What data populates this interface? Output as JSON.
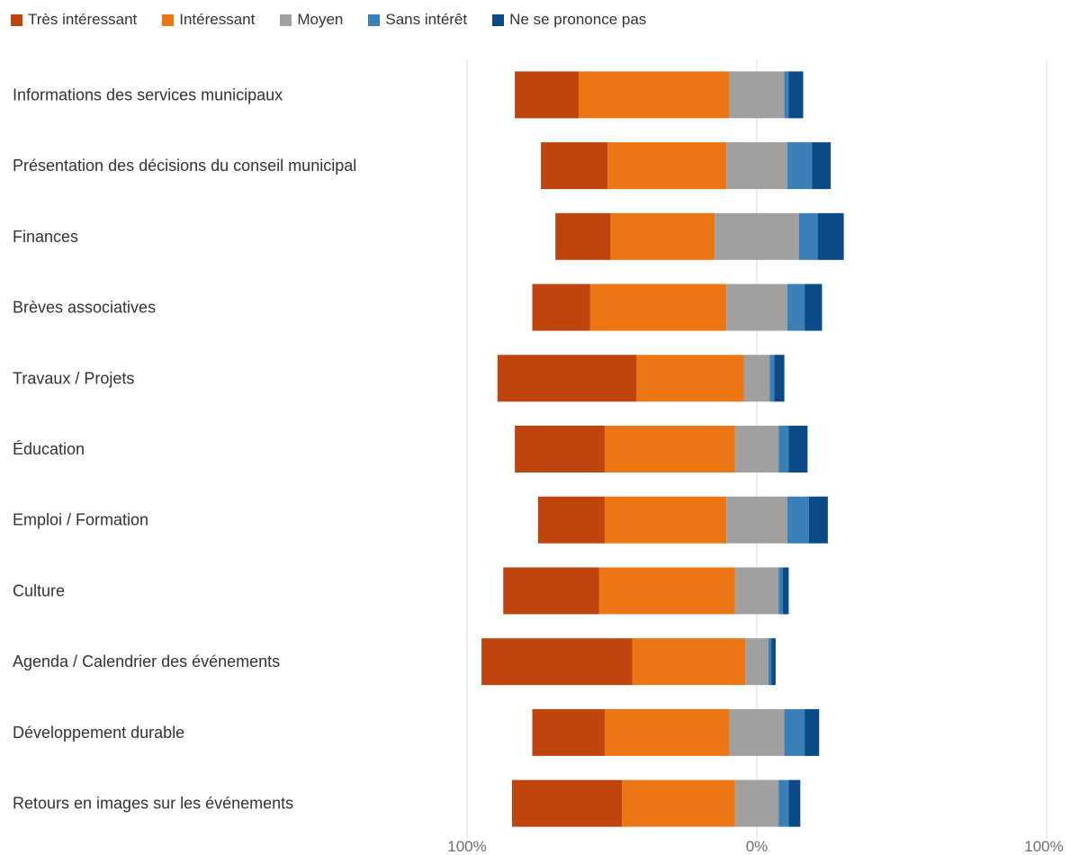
{
  "chart_data": {
    "type": "bar",
    "orientation": "horizontal",
    "stacked": "diverging",
    "legend_position": "top-left",
    "grid": true,
    "categories": [
      "Informations des services municipaux",
      "Présentation des décisions du conseil municipal",
      "Finances",
      "Brèves associatives",
      "Travaux / Projets",
      "Éducation",
      "Emploi / Formation",
      "Culture",
      "Agenda / Calendrier des événements",
      "Développement durable",
      "Retours en images sur les événements"
    ],
    "series": [
      {
        "name": "Très intéressant",
        "color": "#c0440e",
        "side": "negative",
        "values": [
          22,
          23,
          19,
          20,
          48,
          31,
          23,
          33,
          52,
          25,
          38
        ]
      },
      {
        "name": "Intéressant",
        "color": "#ec7614",
        "side": "negative",
        "values": [
          52,
          41,
          36,
          47,
          37,
          45,
          42,
          47,
          39,
          43,
          39
        ]
      },
      {
        "name": "Moyen",
        "color": "#a0a0a0",
        "side": "neutral",
        "values": [
          19,
          21,
          29,
          21,
          9,
          15,
          21,
          15,
          8,
          19,
          15
        ]
      },
      {
        "name": "Sans intérêt",
        "color": "#3a7fb8",
        "side": "positive",
        "values": [
          1.5,
          8.5,
          6.5,
          6,
          1.5,
          3.5,
          7.5,
          1.5,
          1,
          7,
          3.5
        ]
      },
      {
        "name": "Ne se prononce pas",
        "color": "#0a4a86",
        "side": "positive",
        "values": [
          5,
          6.5,
          9,
          6,
          3.5,
          6.5,
          6.5,
          2,
          1.5,
          5,
          4
        ]
      }
    ],
    "x_ticks": [
      "100%",
      "0%",
      "100%"
    ],
    "xlim": [
      -100,
      100
    ]
  }
}
